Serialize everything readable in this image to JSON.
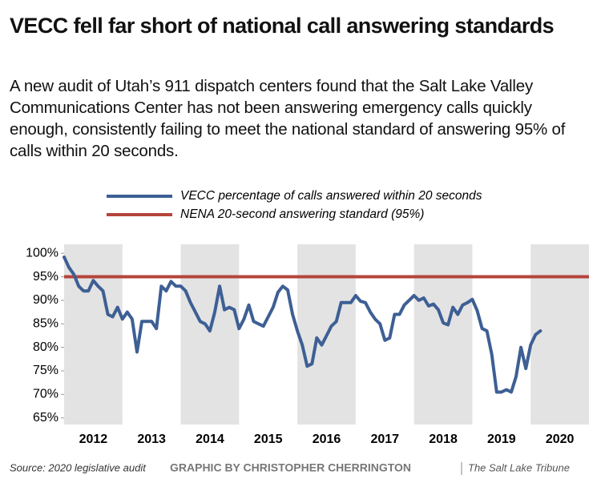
{
  "chart_data": {
    "type": "line",
    "title": "VECC fell far short of national call answering standards",
    "subtitle": "A new audit of Utah’s 911 dispatch centers found that the Salt Lake Valley Communications Center has not been answering emergency calls quickly enough, consistently failing to meet the national standard of answering 95% of calls within 20 seconds.",
    "x": [
      2012,
      2012.083,
      2012.167,
      2012.25,
      2012.333,
      2012.417,
      2012.5,
      2012.583,
      2012.667,
      2012.75,
      2012.833,
      2012.917,
      2013,
      2013.083,
      2013.167,
      2013.25,
      2013.333,
      2013.417,
      2013.5,
      2013.583,
      2013.667,
      2013.75,
      2013.833,
      2013.917,
      2014,
      2014.083,
      2014.167,
      2014.25,
      2014.333,
      2014.417,
      2014.5,
      2014.583,
      2014.667,
      2014.75,
      2014.833,
      2014.917,
      2015,
      2015.083,
      2015.167,
      2015.25,
      2015.333,
      2015.417,
      2015.5,
      2015.583,
      2015.667,
      2015.75,
      2015.833,
      2015.917,
      2016,
      2016.083,
      2016.167,
      2016.25,
      2016.333,
      2016.417,
      2016.5,
      2016.583,
      2016.667,
      2016.75,
      2016.833,
      2016.917,
      2017,
      2017.083,
      2017.167,
      2017.25,
      2017.333,
      2017.417,
      2017.5,
      2017.583,
      2017.667,
      2017.75,
      2017.833,
      2017.917,
      2018,
      2018.083,
      2018.167,
      2018.25,
      2018.333,
      2018.417,
      2018.5,
      2018.583,
      2018.667,
      2018.75,
      2018.833,
      2018.917,
      2019,
      2019.083,
      2019.167,
      2019.25,
      2019.333,
      2019.417,
      2019.5,
      2019.583,
      2019.667,
      2019.75,
      2019.833,
      2019.917,
      2020,
      2020.083,
      2020.167
    ],
    "series": [
      {
        "name": "VECC percentage of calls answered within 20 seconds",
        "color": "#3d5f94",
        "values": [
          99.2,
          97,
          95.5,
          93,
          92,
          92,
          94.2,
          93,
          92,
          87,
          86.5,
          88.5,
          86,
          87.5,
          86,
          79,
          85.5,
          85.5,
          85.5,
          84,
          93,
          92,
          94,
          93,
          93,
          92,
          89.5,
          87.5,
          85.5,
          85,
          83.5,
          87.5,
          93,
          88,
          88.5,
          88,
          84,
          86,
          89,
          85.5,
          85,
          84.5,
          86.5,
          88.5,
          91.7,
          93,
          92.2,
          87,
          83.5,
          80.5,
          76,
          76.5,
          82,
          80.5,
          82.5,
          84.5,
          85.5,
          89.5,
          89.5,
          89.5,
          91,
          89.8,
          89.5,
          87.5,
          86,
          85,
          81.5,
          82,
          87,
          87,
          89,
          90,
          91,
          90,
          90.5,
          88.8,
          89.2,
          88,
          85.2,
          84.8,
          88.5,
          87,
          89,
          89.5,
          90.2,
          87.8,
          84,
          83.5,
          78.5,
          70.5,
          70.5,
          71,
          70.5,
          73.8,
          80,
          75.5,
          80.5,
          82.7,
          83.5
        ]
      }
    ],
    "reference_line": {
      "name": "NENA 20-second answering standard (95%)",
      "value": 95,
      "color": "#b5443b"
    },
    "xlim": [
      2012,
      2021
    ],
    "xticks": [
      {
        "value": 2012.5,
        "label": "2012"
      },
      {
        "value": 2013.5,
        "label": "2013"
      },
      {
        "value": 2014.5,
        "label": "2014"
      },
      {
        "value": 2015.5,
        "label": "2015"
      },
      {
        "value": 2016.5,
        "label": "2016"
      },
      {
        "value": 2017.5,
        "label": "2017"
      },
      {
        "value": 2018.5,
        "label": "2018"
      },
      {
        "value": 2019.5,
        "label": "2019"
      },
      {
        "value": 2020.5,
        "label": "2020"
      }
    ],
    "ylim": [
      63.6,
      101.9
    ],
    "yticks": [
      {
        "value": 100,
        "label": "100%"
      },
      {
        "value": 95,
        "label": "95%"
      },
      {
        "value": 90,
        "label": "90%"
      },
      {
        "value": 85,
        "label": "85%"
      },
      {
        "value": 80,
        "label": "80%"
      },
      {
        "value": 75,
        "label": "75%"
      },
      {
        "value": 70,
        "label": "70%"
      },
      {
        "value": 65,
        "label": "65%"
      }
    ],
    "band_color": "#e3e3e3",
    "source": "Source: 2020 legislative audit",
    "credit": "GRAPHIC BY CHRISTOPHER CHERRINGTON",
    "publisher": "The Salt Lake Tribune"
  }
}
